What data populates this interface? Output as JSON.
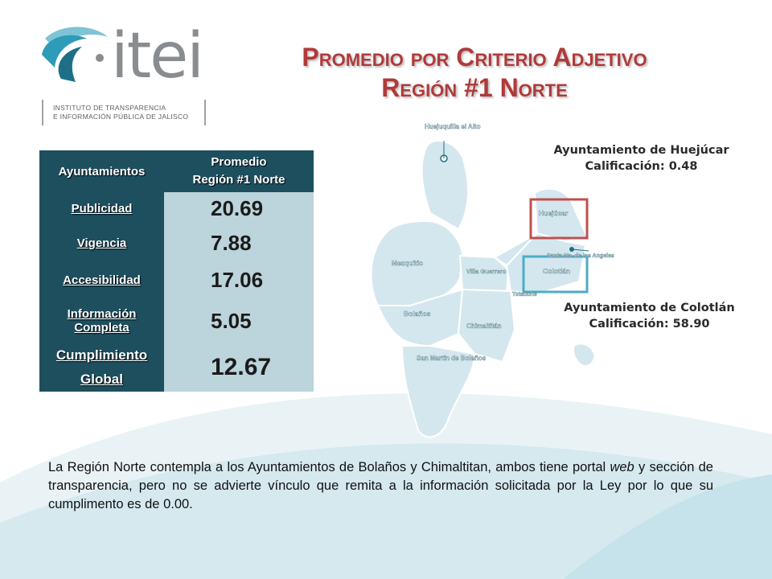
{
  "logo": {
    "wordmark": "itei",
    "subtitle_line1": "INSTITUTO DE TRANSPARENCIA",
    "subtitle_line2": "E INFORMACIÓN PÚBLICA DE JALISCO"
  },
  "title": {
    "line1": "Promedio por Criterio Adjetivo",
    "line2": "Región #1 Norte"
  },
  "table": {
    "header_col1": "Ayuntamientos",
    "header_col2_line1": "Promedio",
    "header_col2_line2": "Región #1 Norte",
    "rows": [
      {
        "label": "Publicidad",
        "value": "20.69"
      },
      {
        "label": "Vigencia",
        "value": "7.88"
      },
      {
        "label": "Accesibilidad",
        "value": "17.06"
      },
      {
        "label_line1": "Información",
        "label_line2": "Completa",
        "value": "5.05"
      },
      {
        "label_line1": "Cumplimiento",
        "label_line2": "Global",
        "value": "12.67"
      }
    ]
  },
  "map": {
    "labels": {
      "huejuquilla": "Huejuquilla el Alto",
      "mezquitic": "Mezquitic",
      "villa_guerrero": "Villa Guerrero",
      "huejucar": "Huejúcar",
      "colotlan": "Colotlán",
      "santa_maria": "Santa Ma. de los Angeles",
      "totatiche": "Totatiche",
      "bolanos": "Bolaños",
      "chimaltitan": "Chimaltitán",
      "san_martin": "San Martín de Bolaños"
    },
    "highlight_colors": {
      "huejucar": "#c0504d",
      "colotlan": "#4bacc6"
    }
  },
  "callouts": {
    "huejucar": {
      "name": "Ayuntamiento de Huejúcar",
      "score": "Calificación: 0.48"
    },
    "colotlan": {
      "name": "Ayuntamiento de Colotlán",
      "score": "Calificación: 58.90"
    }
  },
  "paragraph": {
    "part1": "La Región Norte contempla a los Ayuntamientos de Bolaños y Chimaltitan, ambos tiene portal ",
    "italic": "web",
    "part2": " y sección de transparencia, pero no se advierte vínculo que remita a la información solicitada por la Ley por lo que su cumplimento es de 0.00."
  },
  "colors": {
    "title": "#b03a3a",
    "table_header": "#1d4f5f",
    "table_value_bg": "#bcd4dc",
    "map_fill": "#d4e7ee",
    "map_stroke": "#ffffff"
  }
}
